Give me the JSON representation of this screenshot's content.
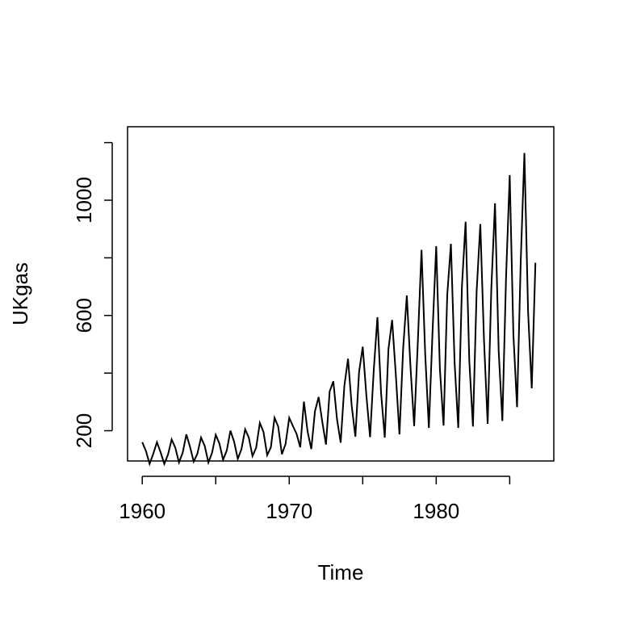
{
  "chart_data": {
    "type": "line",
    "title": "",
    "xlabel": "Time",
    "ylabel": "UKgas",
    "xlim": [
      1959.0,
      1988.0
    ],
    "ylim": [
      95,
      1255
    ],
    "x_ticks": [
      1960,
      1970,
      1980
    ],
    "x_tick_labels": [
      "1960",
      "1970",
      "1980"
    ],
    "y_ticks": [
      200,
      400,
      600,
      800,
      1000,
      1200
    ],
    "y_tick_labels": [
      "200",
      "",
      "600",
      "",
      "1000",
      ""
    ],
    "grid": false,
    "legend": "none",
    "line_color": "#000000",
    "series": [
      {
        "name": "",
        "start": 1960.0,
        "frequency": 4,
        "values": [
          160.1,
          129.7,
          84.8,
          120.1,
          160.1,
          124.9,
          84.8,
          116.9,
          169.7,
          140.9,
          89.7,
          123.3,
          187.3,
          144.1,
          92.9,
          120.1,
          176.1,
          147.3,
          89.7,
          123.3,
          185.7,
          155.3,
          99.3,
          131.3,
          200.1,
          161.7,
          102.5,
          136.1,
          204.9,
          176.1,
          112.1,
          140.9,
          227.3,
          195.3,
          115.3,
          142.5,
          244.9,
          214.5,
          118.5,
          153.7,
          244.9,
          216.1,
          188.9,
          142.5,
          301.0,
          196.9,
          136.1,
          267.3,
          317.0,
          230.5,
          152.1,
          336.2,
          371.4,
          240.1,
          158.5,
          355.4,
          449.9,
          286.6,
          179.3,
          403.4,
          491.5,
          321.8,
          177.7,
          409.8,
          593.9,
          329.8,
          176.1,
          483.5,
          584.3,
          395.4,
          187.3,
          485.1,
          669.2,
          421.0,
          216.1,
          509.1,
          827.7,
          467.5,
          209.7,
          542.7,
          840.5,
          414.6,
          217.7,
          670.8,
          848.5,
          437.0,
          209.7,
          701.2,
          925.3,
          443.4,
          214.5,
          683.6,
          917.3,
          515.5,
          224.1,
          694.8,
          989.4,
          477.1,
          233.7,
          730.0,
          1087.0,
          534.7,
          281.8,
          787.6,
          1163.9,
          613.1,
          347.4,
          782.8
        ]
      }
    ]
  }
}
